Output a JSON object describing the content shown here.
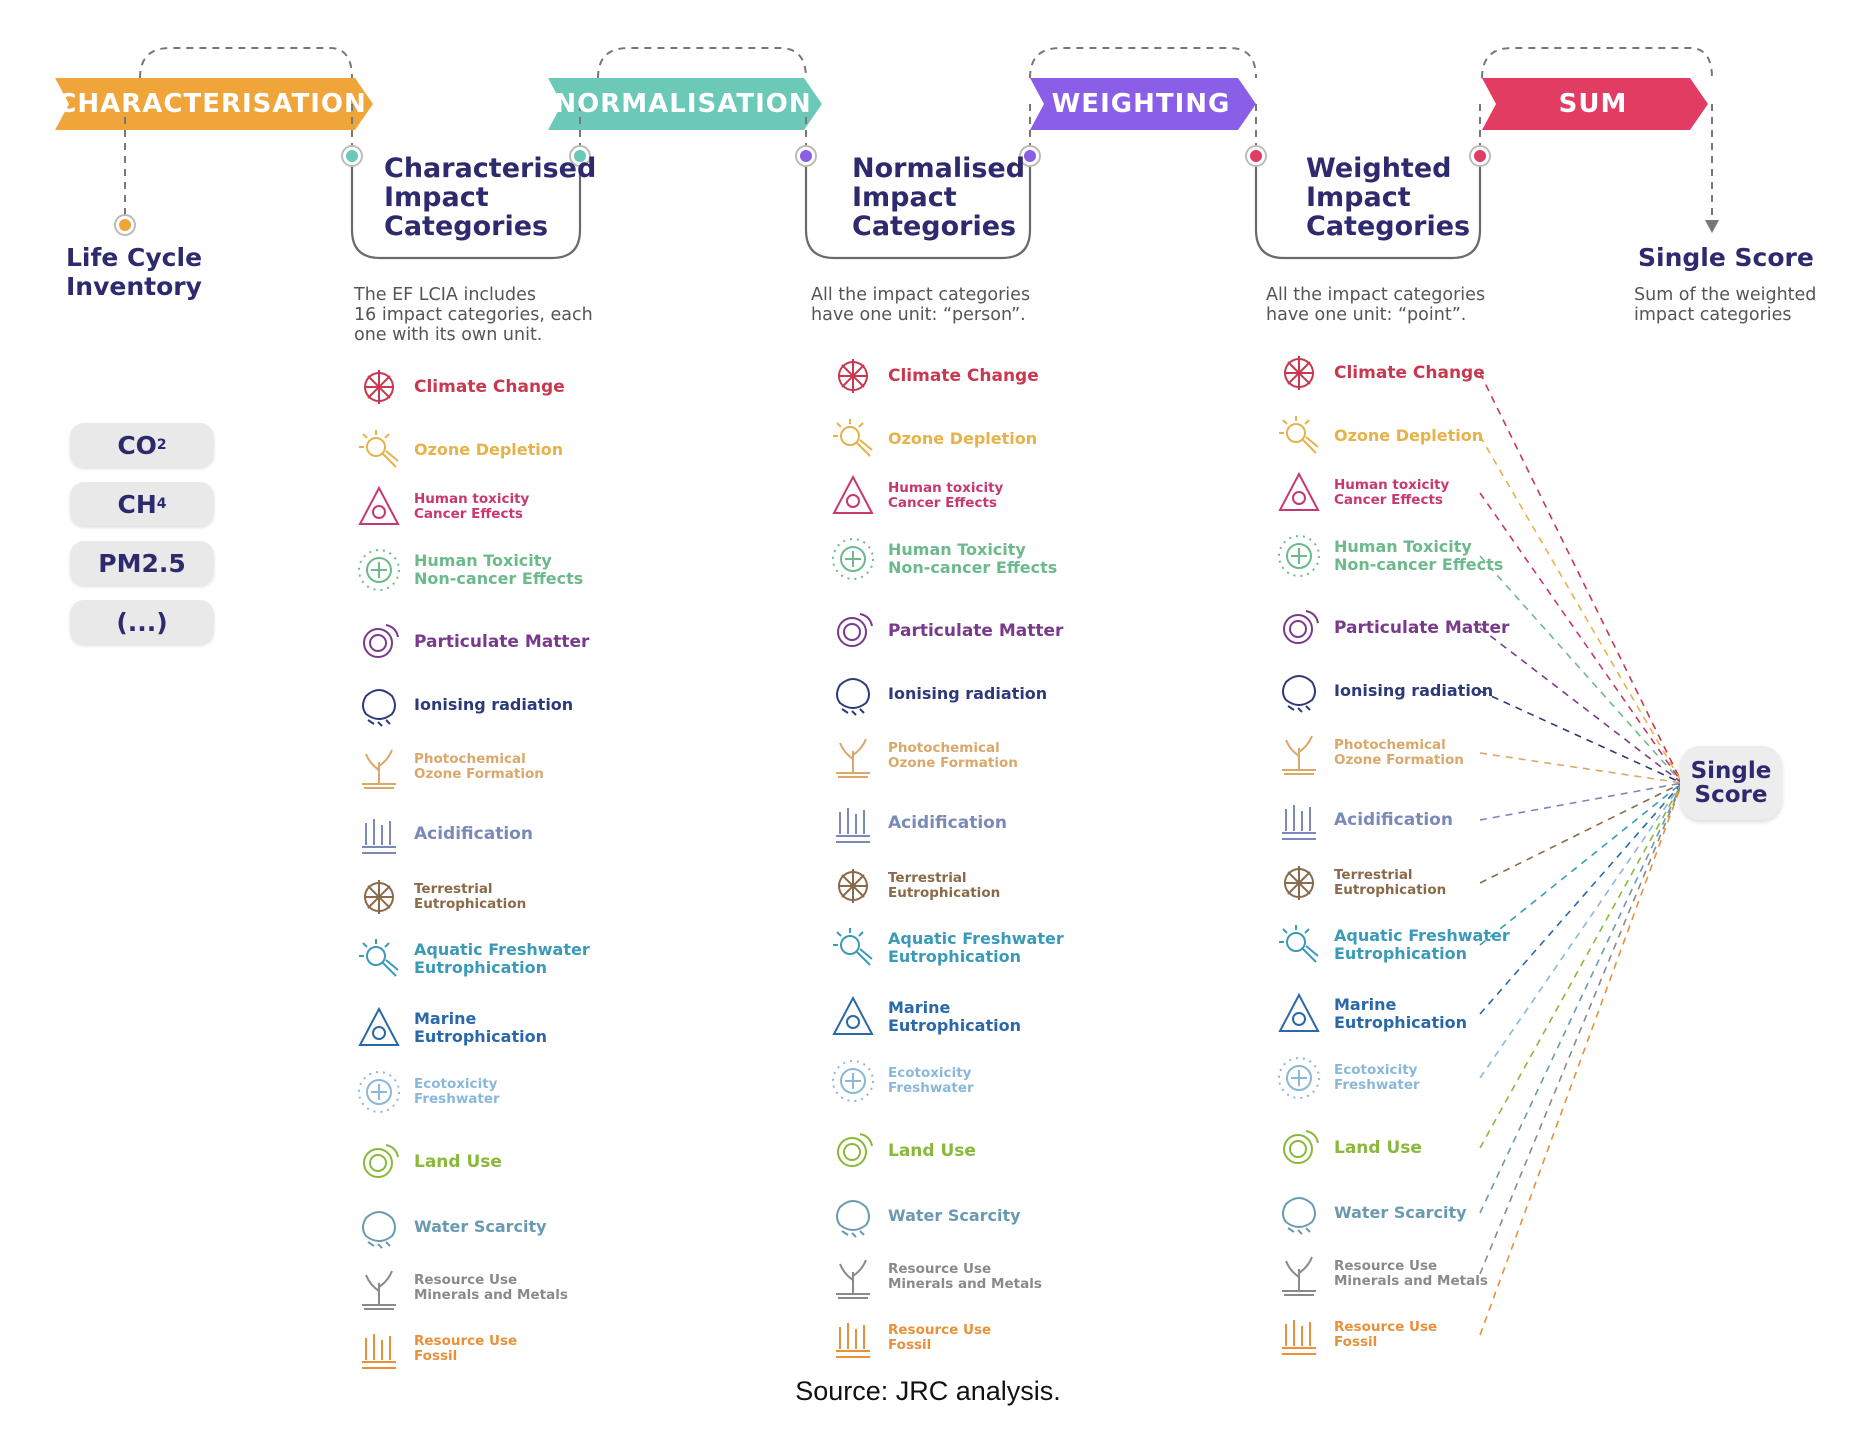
{
  "stages": [
    {
      "label": "CHARACTERISATION",
      "color": "#f0a53a"
    },
    {
      "label": "NORMALISATION",
      "color": "#6cc9b8"
    },
    {
      "label": "WEIGHTING",
      "color": "#8a5ee6"
    },
    {
      "label": "SUM",
      "color": "#e23c63"
    }
  ],
  "nodes": {
    "lci": {
      "line1": "Life Cycle",
      "line2": "Inventory"
    },
    "characterised": {
      "title": "Characterised\nImpact\nCategories",
      "desc": "The EF LCIA includes\n16 impact categories, each\none with its own unit."
    },
    "normalised": {
      "title": "Normalised\nImpact\nCategories",
      "desc": "All the impact categories\nhave one unit: “person”."
    },
    "weighted": {
      "title": "Weighted\nImpact\nCategories",
      "desc": "All the impact categories\nhave one unit: “point”."
    },
    "single": {
      "title": "Single Score",
      "desc": "Sum of the weighted\nimpact categories"
    }
  },
  "inventory_items": [
    {
      "base": "CO",
      "sub": "2"
    },
    {
      "base": "CH",
      "sub": "4"
    },
    {
      "base": "PM2.5",
      "sub": ""
    },
    {
      "base": "(...)",
      "sub": ""
    }
  ],
  "categories": [
    {
      "label": "Climate Change",
      "color": "#c8384e",
      "icon": "climate-change-icon",
      "size": "l"
    },
    {
      "label": "Ozone Depletion",
      "color": "#e8b24a",
      "icon": "ozone-depletion-icon",
      "size": "m"
    },
    {
      "label": "Human toxicity\nCancer Effects",
      "color": "#c8386e",
      "icon": "human-toxicity-cancer-icon",
      "size": "s"
    },
    {
      "label": "Human Toxicity\nNon-cancer Effects",
      "color": "#6cba8c",
      "icon": "human-toxicity-noncancer-icon",
      "size": "m"
    },
    {
      "label": "Particulate Matter",
      "color": "#7a3a8c",
      "icon": "particulate-matter-icon",
      "size": "l"
    },
    {
      "label": "Ionising radiation",
      "color": "#2d3a7a",
      "icon": "ionising-radiation-icon",
      "size": "m"
    },
    {
      "label": "Photochemical\nOzone Formation",
      "color": "#d9a86a",
      "icon": "photochemical-ozone-icon",
      "size": "s"
    },
    {
      "label": "Acidification",
      "color": "#7a8ab8",
      "icon": "acidification-icon",
      "size": "l"
    },
    {
      "label": "Terrestrial\nEutrophication",
      "color": "#8a6a4a",
      "icon": "terrestrial-eutrophication-icon",
      "size": "s"
    },
    {
      "label": "Aquatic Freshwater\nEutrophication",
      "color": "#3a9ab8",
      "icon": "aquatic-freshwater-icon",
      "size": "m"
    },
    {
      "label": "Marine\nEutrophication",
      "color": "#2a68a8",
      "icon": "marine-eutrophication-icon",
      "size": "m"
    },
    {
      "label": "Ecotoxicity\nFreshwater",
      "color": "#8ab8d8",
      "icon": "ecotoxicity-freshwater-icon",
      "size": "s"
    },
    {
      "label": "Land Use",
      "color": "#8ab83a",
      "icon": "land-use-icon",
      "size": "l"
    },
    {
      "label": "Water Scarcity",
      "color": "#6a9ab0",
      "icon": "water-scarcity-icon",
      "size": "m"
    },
    {
      "label": "Resource Use\nMinerals and Metals",
      "color": "#8a8a8a",
      "icon": "resource-minerals-icon",
      "size": "s"
    },
    {
      "label": "Resource Use\nFossil",
      "color": "#e8903a",
      "icon": "resource-fossil-icon",
      "size": "s"
    }
  ],
  "sum_box": "Single\nScore",
  "source": "Source: JRC analysis."
}
